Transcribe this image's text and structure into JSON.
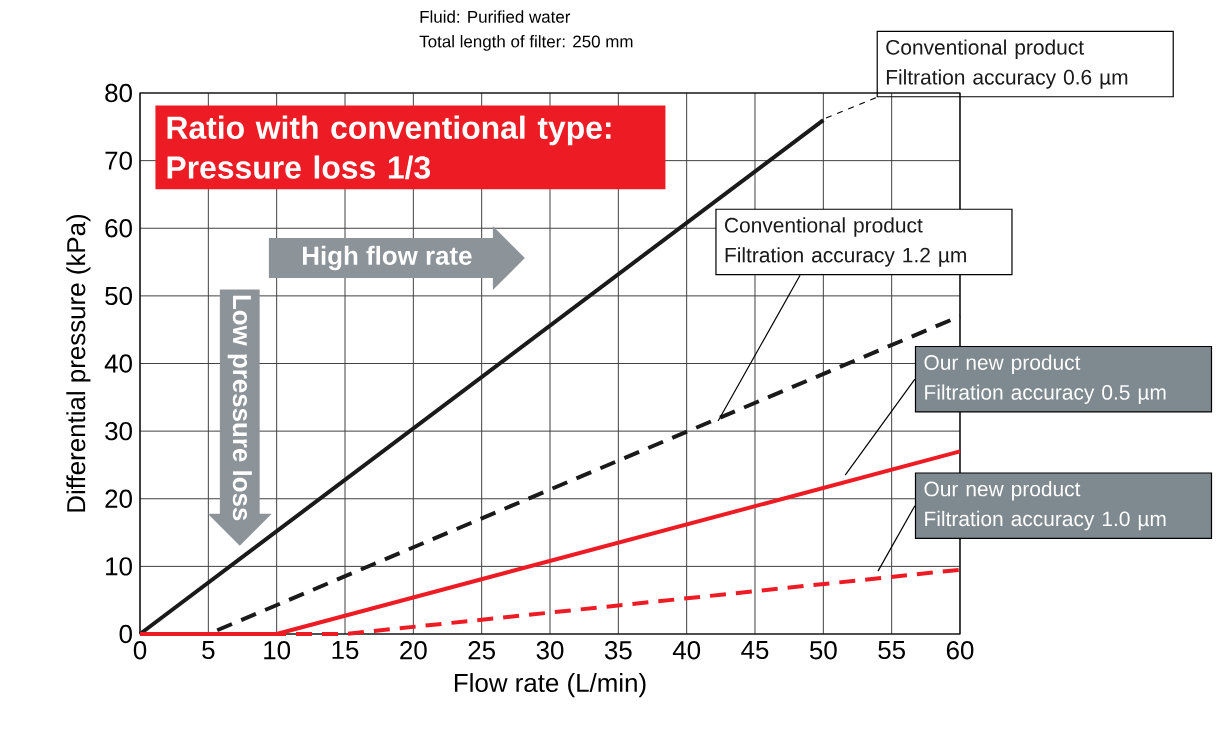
{
  "chart_data": {
    "type": "line",
    "xlabel": "Flow rate (L/min)",
    "ylabel": "Differential pressure (kPa)",
    "xlim": [
      0,
      60
    ],
    "ylim": [
      0,
      80
    ],
    "xticks": [
      0,
      5,
      10,
      15,
      20,
      25,
      30,
      35,
      40,
      45,
      50,
      55,
      60
    ],
    "yticks": [
      0,
      10,
      20,
      30,
      40,
      50,
      60,
      70,
      80
    ],
    "grid": true,
    "marker": "none",
    "series": [
      {
        "name": "Conventional product Filtration accuracy 0.6 µm",
        "color": "#1a1a1a",
        "line_style": "solid",
        "x": [
          0,
          50
        ],
        "values": [
          0,
          76
        ]
      },
      {
        "name": "Conventional product Filtration accuracy 1.2 µm",
        "color": "#1a1a1a",
        "line_style": "dashed",
        "x": [
          0,
          5,
          60
        ],
        "values": [
          0,
          0,
          47
        ]
      },
      {
        "name": "Our new product Filtration accuracy 0.5 µm",
        "color": "#ed1c24",
        "line_style": "solid",
        "x": [
          0,
          10,
          60
        ],
        "values": [
          0,
          0,
          27
        ]
      },
      {
        "name": "Our new product Filtration accuracy 1.0 µm",
        "color": "#ed1c24",
        "line_style": "dashed",
        "x": [
          0,
          15,
          60
        ],
        "values": [
          0,
          0,
          9.5
        ]
      }
    ],
    "annotations": [
      "Fluid: Purified water",
      "Total length of filter: 250 mm",
      "Ratio with conventional type: Pressure loss 1/3",
      "High flow rate",
      "Low pressure loss"
    ]
  }
}
